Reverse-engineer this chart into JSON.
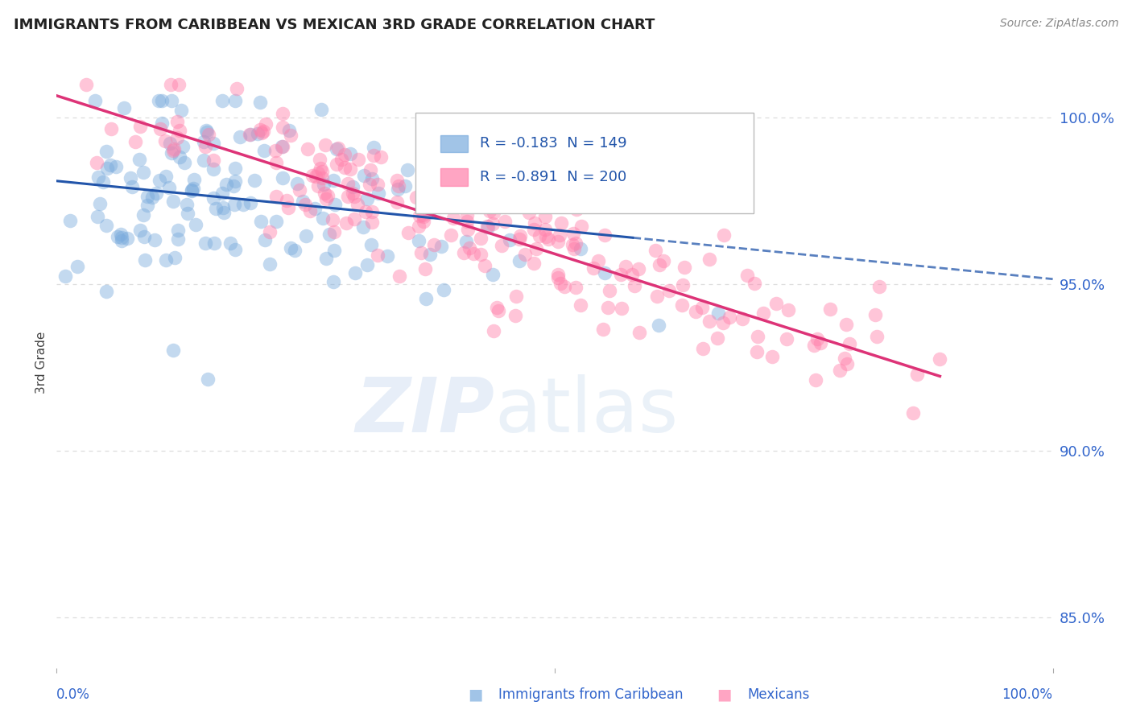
{
  "title": "IMMIGRANTS FROM CARIBBEAN VS MEXICAN 3RD GRADE CORRELATION CHART",
  "source": "Source: ZipAtlas.com",
  "ylabel": "3rd Grade",
  "ytick_labels": [
    "85.0%",
    "90.0%",
    "95.0%",
    "100.0%"
  ],
  "ytick_values": [
    0.85,
    0.9,
    0.95,
    1.0
  ],
  "xlim": [
    0.0,
    1.0
  ],
  "ylim": [
    0.835,
    1.018
  ],
  "R_caribbean": -0.183,
  "N_caribbean": 149,
  "R_mexican": -0.891,
  "N_mexican": 200,
  "color_caribbean": "#7AABDD",
  "color_mexican": "#FF7FAA",
  "color_trend_caribbean": "#2255AA",
  "color_trend_mexican": "#DD3377",
  "color_title": "#222222",
  "color_source": "#888888",
  "color_axis_labels": "#3366CC",
  "background_color": "#FFFFFF",
  "grid_color": "#DDDDDD"
}
